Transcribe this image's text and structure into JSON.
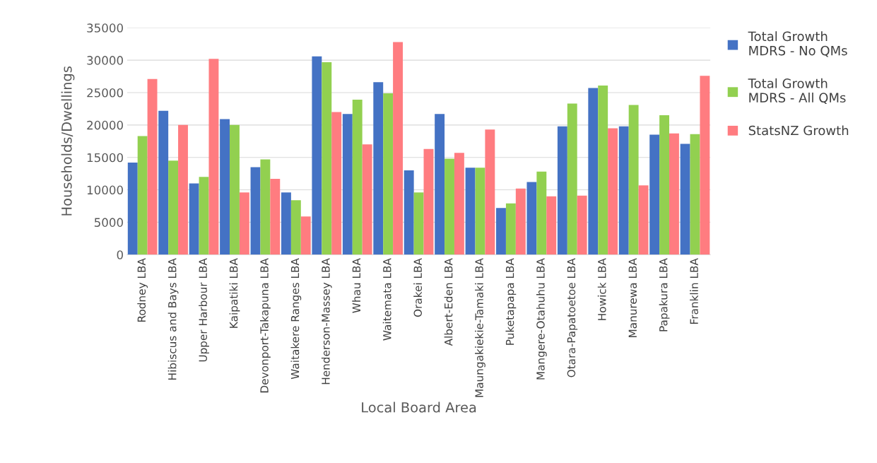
{
  "chart_data": {
    "type": "bar",
    "xlabel": "Local Board Area",
    "ylabel": "Households/Dwellings",
    "categories": [
      "Rodney LBA",
      "Hibiscus and Bays LBA",
      "Upper Harbour LBA",
      "Kaipatiki LBA",
      "Devonport-Takapuna LBA",
      "Waitakere Ranges LBA",
      "Henderson-Massey LBA",
      "Whau LBA",
      "Waitemata LBA",
      "Orakei LBA",
      "Albert-Eden LBA",
      "Maungakiekie-Tamaki LBA",
      "Puketapapa LBA",
      "Mangere-Otahuhu LBA",
      "Otara-Papatoetoe LBA",
      "Howick LBA",
      "Manurewa LBA",
      "Papakura LBA",
      "Franklin LBA"
    ],
    "series": [
      {
        "name": "Total Growth MDRS - No QMs",
        "color": "#4472c4",
        "values": [
          14200,
          22200,
          11000,
          20900,
          13500,
          9600,
          30600,
          21700,
          26600,
          13000,
          21700,
          13400,
          7200,
          11200,
          19800,
          25700,
          19800,
          18500,
          17100
        ]
      },
      {
        "name": "Total Growth MDRS - All QMs",
        "color": "#92d050",
        "values": [
          18300,
          14500,
          12000,
          20000,
          14700,
          8400,
          29700,
          23900,
          24900,
          9600,
          14800,
          13400,
          7900,
          12800,
          23300,
          26100,
          23100,
          21500,
          18600
        ]
      },
      {
        "name": "StatsNZ Growth",
        "color": "#ff7c80",
        "values": [
          27100,
          20000,
          30200,
          9600,
          11700,
          5900,
          22000,
          17000,
          32800,
          16300,
          15700,
          19300,
          10200,
          9000,
          9100,
          19500,
          10700,
          18700,
          27600
        ]
      }
    ],
    "ylim": [
      0,
      35000
    ],
    "yticks": [
      0,
      5000,
      10000,
      15000,
      20000,
      25000,
      30000,
      35000
    ],
    "grid": "y",
    "legend": "right"
  }
}
